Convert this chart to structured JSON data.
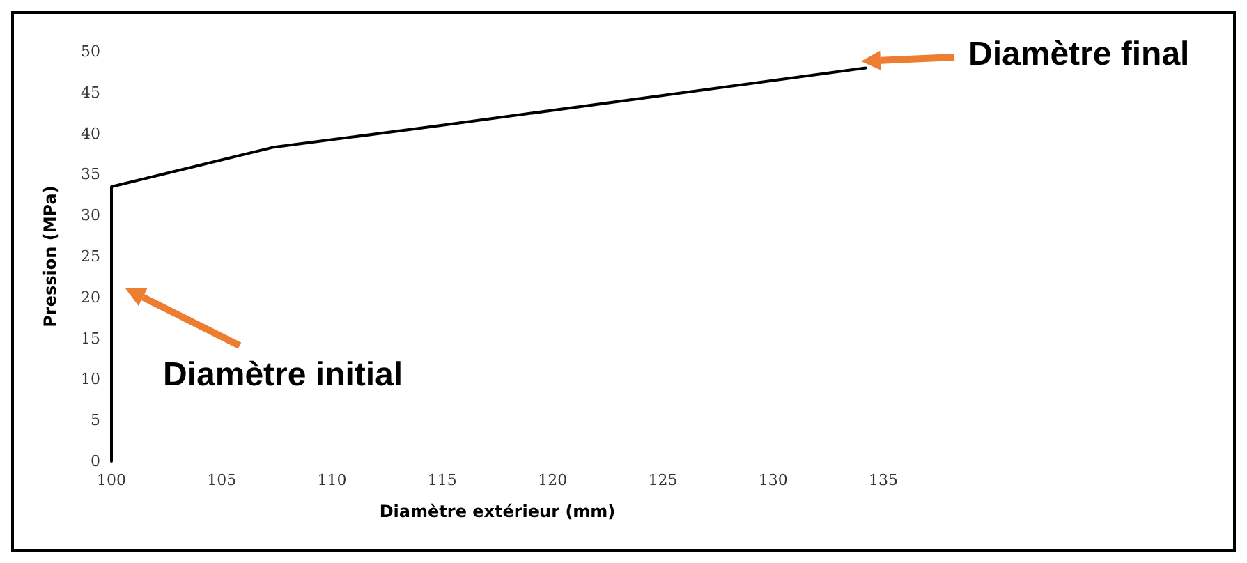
{
  "chart_data": {
    "type": "line",
    "xlabel": "Diamètre extérieur (mm)",
    "ylabel": "Pression (MPa)",
    "x": [
      100,
      100,
      107.3,
      115,
      134.2
    ],
    "series": [
      {
        "color": "#000000",
        "values": [
          0,
          33.5,
          38.3,
          41,
          48
        ]
      }
    ],
    "xlim": [
      100,
      135
    ],
    "xticks": [
      100,
      105,
      110,
      115,
      120,
      125,
      130,
      135
    ],
    "ylim": [
      0,
      50
    ],
    "yticks": [
      0,
      5,
      10,
      15,
      20,
      25,
      30,
      35,
      40,
      45,
      50
    ],
    "grid": false,
    "marker": "none",
    "line_style": "solid",
    "annotations": [
      "Diamètre initial",
      "Diamètre final"
    ]
  }
}
